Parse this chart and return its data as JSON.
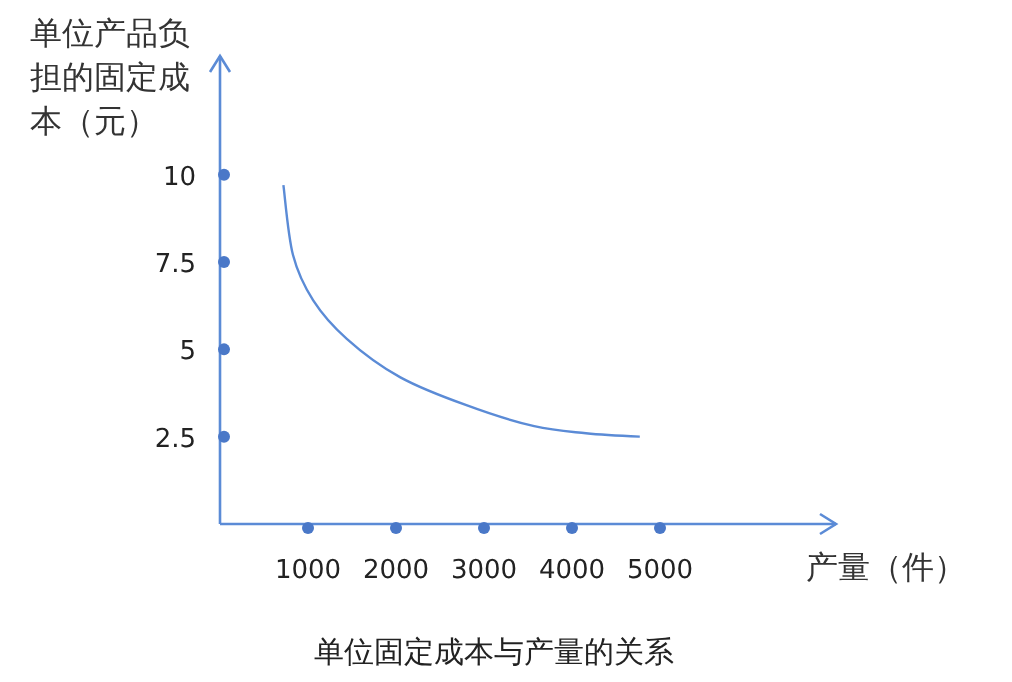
{
  "chart_data": {
    "type": "line",
    "title": "单位固定成本与产量的关系",
    "xlabel": "产量（件）",
    "ylabel": "单位产品负担的固定成本（元）",
    "xlim": [
      0,
      7000
    ],
    "ylim": [
      0,
      13.4
    ],
    "xticks": [
      1000,
      2000,
      3000,
      4000,
      5000
    ],
    "yticks": [
      2.5,
      5,
      7.5,
      10
    ],
    "grid": false,
    "marker": "none",
    "line_style": "solid",
    "series": [
      {
        "color": "#5b8bd6",
        "x": [
          720,
          830,
          1060,
          1440,
          2050,
          2800,
          3570,
          4160,
          4770
        ],
        "values": [
          9.7,
          7.7,
          6.4,
          5.3,
          4.2,
          3.4,
          2.8,
          2.6,
          2.5
        ]
      }
    ]
  }
}
